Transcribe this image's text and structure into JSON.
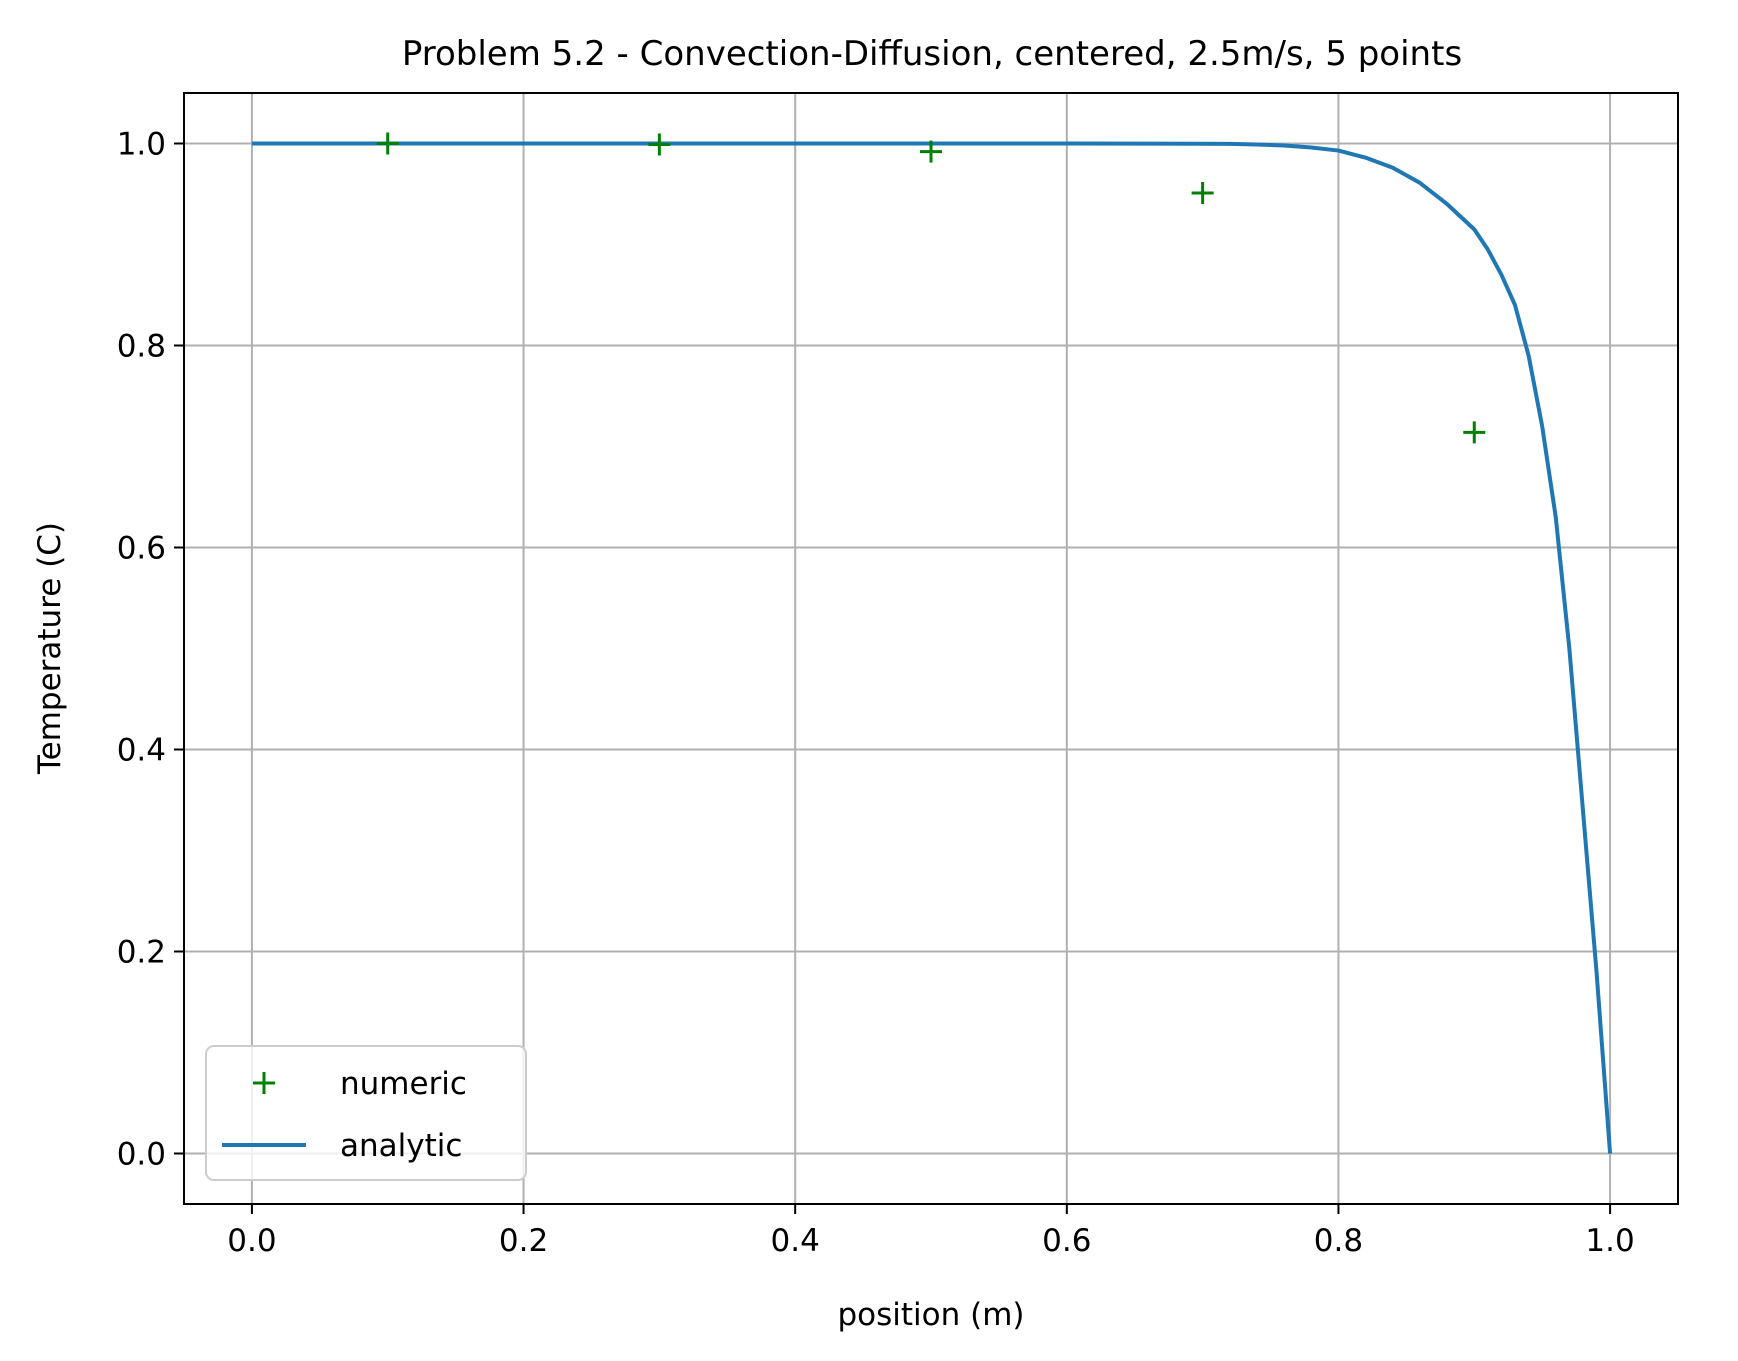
{
  "chart_data": {
    "type": "line",
    "title": "Problem 5.2 - Convection-Diffusion, centered, 2.5m/s, 5 points",
    "xlabel": "position (m)",
    "ylabel": "Temperature (C)",
    "xlim": [
      -0.05,
      1.05
    ],
    "ylim": [
      -0.05,
      1.05
    ],
    "xticks": [
      0.0,
      0.2,
      0.4,
      0.6,
      0.8,
      1.0
    ],
    "yticks": [
      0.0,
      0.2,
      0.4,
      0.6,
      0.8,
      1.0
    ],
    "xtick_labels": [
      "0.0",
      "0.2",
      "0.4",
      "0.6",
      "0.8",
      "1.0"
    ],
    "ytick_labels": [
      "0.0",
      "0.2",
      "0.4",
      "0.6",
      "0.8",
      "1.0"
    ],
    "grid": true,
    "legend_position": "lower-left",
    "series": [
      {
        "name": "numeric",
        "style": "markers",
        "marker": "+",
        "color": "#008000",
        "x": [
          0.1,
          0.3,
          0.5,
          0.7,
          0.9
        ],
        "y": [
          1.0,
          0.999,
          0.992,
          0.951,
          0.714
        ]
      },
      {
        "name": "analytic",
        "style": "line",
        "color": "#1f77b4",
        "x": [
          0.0,
          0.1,
          0.2,
          0.3,
          0.4,
          0.5,
          0.6,
          0.65,
          0.7,
          0.72,
          0.74,
          0.76,
          0.78,
          0.8,
          0.82,
          0.84,
          0.86,
          0.88,
          0.9,
          0.91,
          0.92,
          0.93,
          0.94,
          0.95,
          0.96,
          0.97,
          0.98,
          0.99,
          1.0
        ],
        "y": [
          1.0,
          1.0,
          1.0,
          1.0,
          1.0,
          1.0,
          1.0,
          0.9999,
          0.9998,
          0.9996,
          0.999,
          0.998,
          0.996,
          0.993,
          0.986,
          0.976,
          0.961,
          0.94,
          0.915,
          0.895,
          0.87,
          0.84,
          0.79,
          0.72,
          0.63,
          0.5,
          0.34,
          0.18,
          0.0
        ]
      }
    ]
  }
}
